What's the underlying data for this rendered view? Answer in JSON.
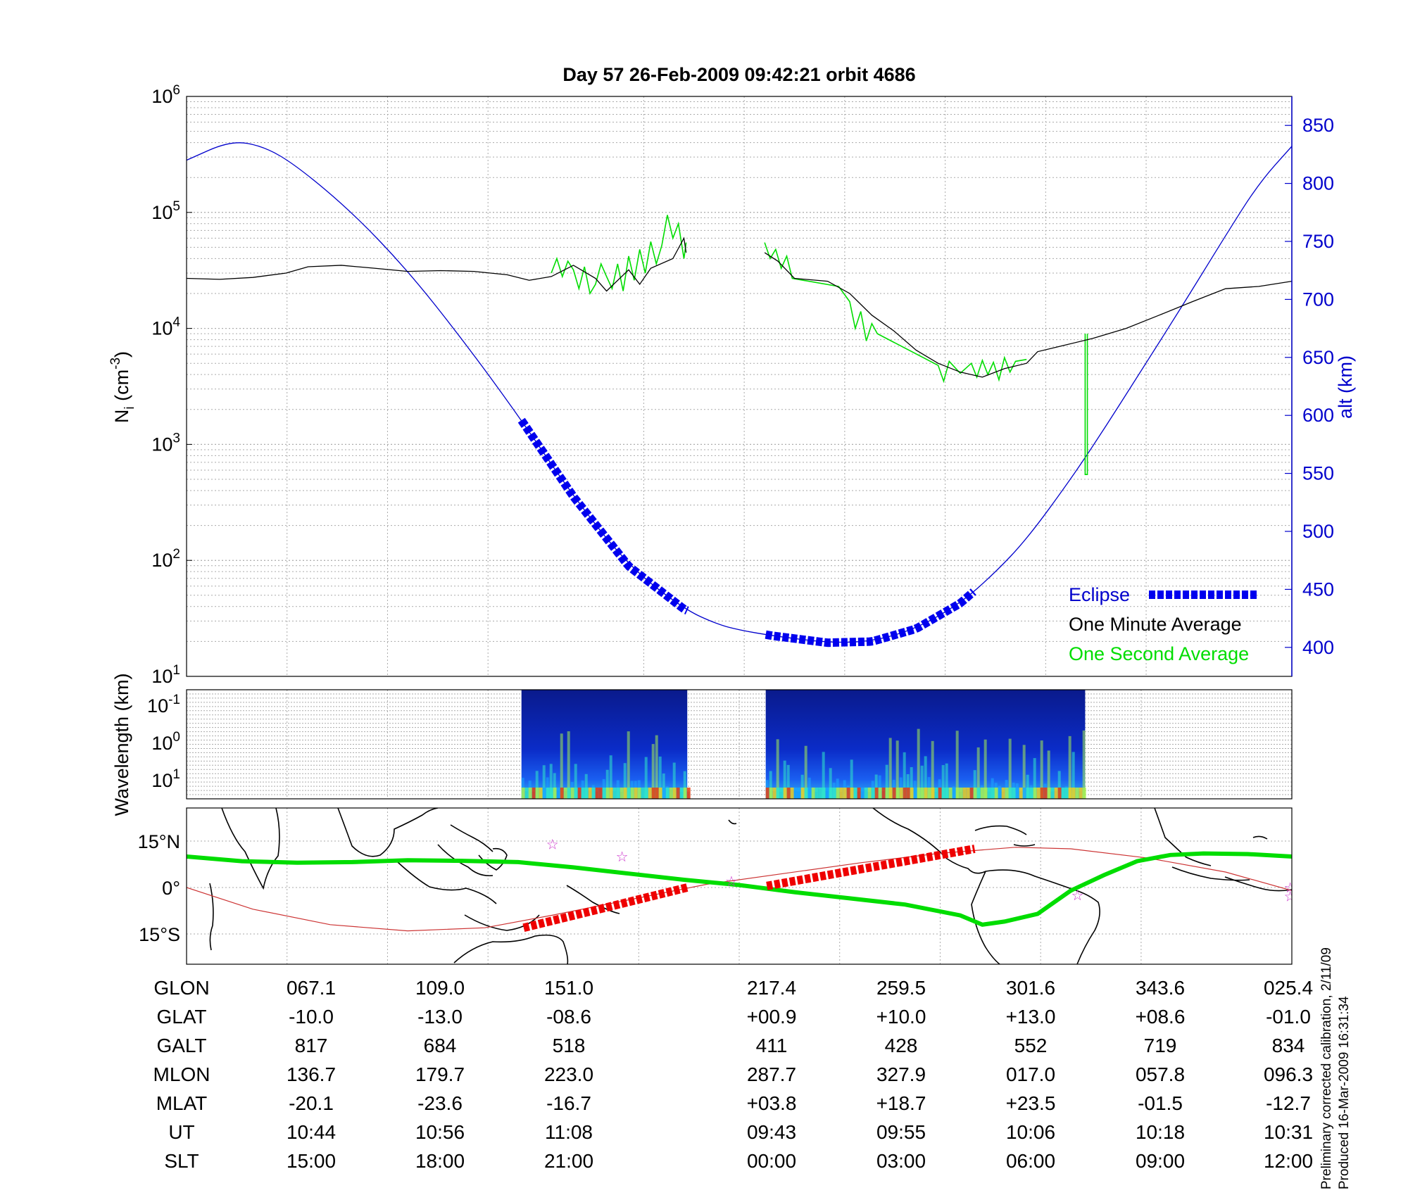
{
  "title": "Day 57  26-Feb-2009 09:42:21   orbit 4686",
  "footnote": {
    "line1": "Preliminary corrected calibration, 2/11/09",
    "line2": "Produced 16-Mar-2009 16:31:34"
  },
  "colors": {
    "altitude": "#0000cc",
    "eclipse": "#0000ee",
    "one_minute": "#000000",
    "one_second": "#00dd00",
    "ground_track": "#00dd00",
    "eclipse_track": "#ee0000",
    "magnetic_equator": "#cc3333",
    "star": "#cc33cc",
    "grid": "#aaaaaa"
  },
  "chart_data": [
    {
      "type": "line",
      "panel": "ion density and altitude",
      "ylabel_main": "N",
      "ylabel_sub": "i",
      "ylabel_unit_open": " (cm",
      "ylabel_unit_exp": "-3",
      "ylabel_unit_close": ")",
      "yscale": "log",
      "ylim": [
        10,
        1000000
      ],
      "y_ticks": [
        {
          "base": "10",
          "exp": "1"
        },
        {
          "base": "10",
          "exp": "2"
        },
        {
          "base": "10",
          "exp": "3"
        },
        {
          "base": "10",
          "exp": "4"
        },
        {
          "base": "10",
          "exp": "5"
        },
        {
          "base": "10",
          "exp": "6"
        }
      ],
      "y2label": "alt (km)",
      "y2lim": [
        375,
        875
      ],
      "y2_ticks": [
        "400",
        "450",
        "500",
        "550",
        "600",
        "650",
        "700",
        "750",
        "800",
        "850"
      ],
      "grid": true,
      "legend_position": "bottom-right",
      "legend": {
        "eclipse": "Eclipse",
        "one_minute": "One Minute Average",
        "one_second": "One Second Average"
      },
      "x_note": "x is orbit fraction, 0 = start of plotted orbit, 1 = end",
      "altitude_km": [
        [
          0.0,
          820
        ],
        [
          0.04,
          837
        ],
        [
          0.07,
          832
        ],
        [
          0.1,
          815
        ],
        [
          0.15,
          775
        ],
        [
          0.2,
          725
        ],
        [
          0.25,
          665
        ],
        [
          0.3,
          600
        ],
        [
          0.35,
          530
        ],
        [
          0.4,
          470
        ],
        [
          0.45,
          433
        ],
        [
          0.48,
          420
        ],
        [
          0.5,
          415
        ],
        [
          0.53,
          410
        ],
        [
          0.58,
          404
        ],
        [
          0.62,
          405
        ],
        [
          0.66,
          416
        ],
        [
          0.7,
          438
        ],
        [
          0.73,
          463
        ],
        [
          0.76,
          493
        ],
        [
          0.8,
          545
        ],
        [
          0.83,
          588
        ],
        [
          0.86,
          633
        ],
        [
          0.9,
          693
        ],
        [
          0.94,
          755
        ],
        [
          0.97,
          800
        ],
        [
          1.0,
          832
        ]
      ],
      "eclipse_segments": [
        [
          0.303,
          0.453
        ],
        [
          0.524,
          0.712
        ]
      ],
      "ion_density_one_minute": [
        [
          [
            0.0,
            27000
          ],
          [
            0.03,
            26500
          ],
          [
            0.06,
            27500
          ],
          [
            0.09,
            30000
          ],
          [
            0.11,
            34000
          ],
          [
            0.14,
            35000
          ],
          [
            0.17,
            33000
          ],
          [
            0.2,
            31000
          ],
          [
            0.23,
            31500
          ],
          [
            0.26,
            31000
          ],
          [
            0.29,
            29000
          ],
          [
            0.31,
            26000
          ],
          [
            0.33,
            28000
          ],
          [
            0.35,
            35000
          ],
          [
            0.37,
            27000
          ],
          [
            0.38,
            21000
          ],
          [
            0.4,
            32000
          ],
          [
            0.41,
            24000
          ],
          [
            0.42,
            33000
          ],
          [
            0.44,
            40000
          ],
          [
            0.45,
            60000
          ],
          [
            0.452,
            45000
          ]
        ],
        [
          [
            0.523,
            45000
          ],
          [
            0.535,
            38000
          ],
          [
            0.55,
            27000
          ],
          [
            0.58,
            25500
          ],
          [
            0.6,
            20000
          ],
          [
            0.62,
            13000
          ],
          [
            0.64,
            9500
          ],
          [
            0.66,
            6500
          ],
          [
            0.68,
            5000
          ],
          [
            0.7,
            4200
          ],
          [
            0.72,
            3800
          ],
          [
            0.74,
            4500
          ],
          [
            0.76,
            5000
          ],
          [
            0.77,
            6300
          ],
          [
            0.79,
            7000
          ],
          [
            0.82,
            8200
          ],
          [
            0.85,
            10000
          ],
          [
            0.88,
            13000
          ],
          [
            0.91,
            17000
          ],
          [
            0.94,
            22000
          ],
          [
            0.97,
            23000
          ],
          [
            1.0,
            25500
          ]
        ]
      ],
      "ion_density_one_second": [
        [
          [
            0.33,
            30000
          ],
          [
            0.335,
            40000
          ],
          [
            0.34,
            28000
          ],
          [
            0.345,
            38000
          ],
          [
            0.35,
            32000
          ],
          [
            0.355,
            22000
          ],
          [
            0.36,
            34000
          ],
          [
            0.365,
            20000
          ],
          [
            0.37,
            24000
          ],
          [
            0.375,
            36000
          ],
          [
            0.38,
            28000
          ],
          [
            0.385,
            22000
          ],
          [
            0.39,
            36000
          ],
          [
            0.395,
            21000
          ],
          [
            0.4,
            42000
          ],
          [
            0.405,
            26000
          ],
          [
            0.41,
            48000
          ],
          [
            0.415,
            30000
          ],
          [
            0.42,
            56000
          ],
          [
            0.425,
            36000
          ],
          [
            0.43,
            52000
          ],
          [
            0.435,
            95000
          ],
          [
            0.44,
            60000
          ],
          [
            0.445,
            80000
          ],
          [
            0.45,
            40000
          ],
          [
            0.452,
            55000
          ]
        ],
        [
          [
            0.523,
            55000
          ],
          [
            0.528,
            40000
          ],
          [
            0.533,
            48000
          ],
          [
            0.538,
            33000
          ],
          [
            0.543,
            42000
          ],
          [
            0.548,
            27000
          ],
          [
            0.59,
            23000
          ],
          [
            0.6,
            17000
          ],
          [
            0.605,
            10000
          ],
          [
            0.61,
            14000
          ],
          [
            0.615,
            7800
          ],
          [
            0.62,
            11000
          ],
          [
            0.625,
            9000
          ],
          [
            0.68,
            4800
          ],
          [
            0.685,
            3500
          ],
          [
            0.69,
            5200
          ],
          [
            0.7,
            4100
          ],
          [
            0.71,
            5000
          ],
          [
            0.715,
            3800
          ],
          [
            0.72,
            5300
          ],
          [
            0.725,
            4000
          ],
          [
            0.73,
            5100
          ],
          [
            0.735,
            3600
          ],
          [
            0.74,
            5600
          ],
          [
            0.745,
            4200
          ],
          [
            0.75,
            5200
          ],
          [
            0.76,
            5400
          ]
        ],
        [
          [
            0.813,
            9000
          ],
          [
            0.813,
            550
          ],
          [
            0.815,
            550
          ],
          [
            0.815,
            9000
          ]
        ]
      ]
    },
    {
      "type": "heatmap",
      "panel": "wavelength spectrogram",
      "ylabel": "Wavelength (km)",
      "yscale": "log",
      "y_ticks": [
        {
          "base": "10",
          "exp": "-1"
        },
        {
          "base": "10",
          "exp": "0"
        },
        {
          "base": "10",
          "exp": "1"
        }
      ],
      "data_windows": [
        [
          0.303,
          0.453
        ],
        [
          0.524,
          0.813
        ]
      ],
      "colormap": "jet",
      "grid": true
    },
    {
      "type": "map",
      "panel": "ground track",
      "lat_ticks": [
        "15°N",
        "0°",
        "15°S"
      ],
      "ground_track_lat": [
        [
          0.0,
          10
        ],
        [
          0.05,
          8.5
        ],
        [
          0.1,
          8
        ],
        [
          0.15,
          8.2
        ],
        [
          0.2,
          8.8
        ],
        [
          0.25,
          8.6
        ],
        [
          0.3,
          8.2
        ],
        [
          0.35,
          6.5
        ],
        [
          0.4,
          4.5
        ],
        [
          0.45,
          2.5
        ],
        [
          0.5,
          0.8
        ],
        [
          0.55,
          -1.5
        ],
        [
          0.6,
          -3.5
        ],
        [
          0.65,
          -5.5
        ],
        [
          0.7,
          -9
        ],
        [
          0.72,
          -12
        ],
        [
          0.74,
          -11
        ],
        [
          0.77,
          -8.5
        ],
        [
          0.8,
          -1
        ],
        [
          0.83,
          4
        ],
        [
          0.86,
          8.5
        ],
        [
          0.89,
          10.5
        ],
        [
          0.92,
          11
        ],
        [
          0.96,
          10.8
        ],
        [
          1.0,
          10
        ]
      ],
      "eclipse_track": [
        [
          [
            0.305,
            -13
          ],
          [
            0.453,
            0
          ]
        ],
        [
          [
            0.525,
            0.5
          ],
          [
            0.713,
            12.5
          ]
        ]
      ],
      "magnetic_equator_lat": [
        [
          0.0,
          0
        ],
        [
          0.06,
          -7
        ],
        [
          0.13,
          -12
        ],
        [
          0.2,
          -14
        ],
        [
          0.27,
          -13
        ],
        [
          0.33,
          -9
        ],
        [
          0.4,
          -4
        ],
        [
          0.47,
          1
        ],
        [
          0.54,
          4.5
        ],
        [
          0.61,
          8
        ],
        [
          0.68,
          11
        ],
        [
          0.75,
          13
        ],
        [
          0.8,
          12.5
        ],
        [
          0.87,
          9.5
        ],
        [
          0.94,
          5
        ],
        [
          1.0,
          -1
        ]
      ],
      "stars": [
        [
          0.331,
          14
        ],
        [
          0.394,
          10
        ],
        [
          0.493,
          2
        ],
        [
          0.806,
          -2.5
        ],
        [
          0.9985,
          0
        ],
        [
          0.9985,
          -2.8
        ]
      ]
    }
  ],
  "table": {
    "row_labels": [
      "GLON",
      "GLAT",
      "GALT",
      "MLON",
      "MLAT",
      "UT",
      "SLT"
    ],
    "columns": [
      [
        "067.1",
        "-10.0",
        "817",
        "136.7",
        "-20.1",
        "10:44",
        "15:00"
      ],
      [
        "109.0",
        "-13.0",
        "684",
        "179.7",
        "-23.6",
        "10:56",
        "18:00"
      ],
      [
        "151.0",
        "-08.6",
        "518",
        "223.0",
        "-16.7",
        "11:08",
        "21:00"
      ],
      [
        "217.4",
        "+00.9",
        "411",
        "287.7",
        "+03.8",
        "09:43",
        "00:00"
      ],
      [
        "259.5",
        "+10.0",
        "428",
        "327.9",
        "+18.7",
        "09:55",
        "03:00"
      ],
      [
        "301.6",
        "+13.0",
        "552",
        "017.0",
        "+23.5",
        "10:06",
        "06:00"
      ],
      [
        "343.6",
        "+08.6",
        "719",
        "057.8",
        "-01.5",
        "10:18",
        "09:00"
      ],
      [
        "025.4",
        "-01.0",
        "834",
        "096.3",
        "-12.7",
        "10:31",
        "12:00"
      ]
    ]
  }
}
